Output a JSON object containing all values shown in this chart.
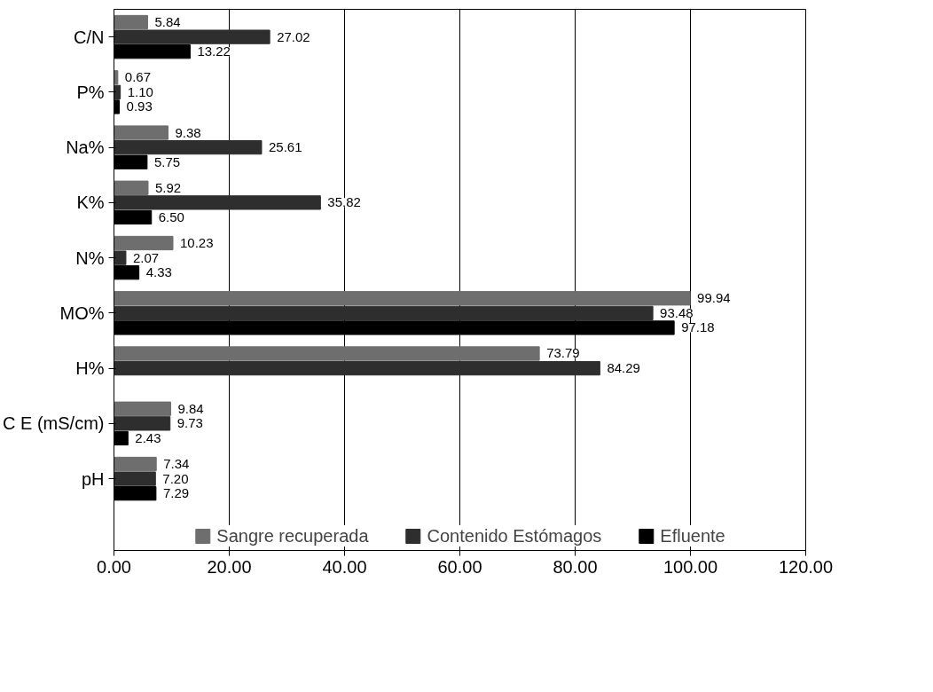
{
  "chart_data": {
    "type": "bar",
    "orientation": "horizontal",
    "categories": [
      "C/N",
      "P%",
      "Na%",
      "K%",
      "N%",
      "MO%",
      "H%",
      "C E (mS/cm)",
      "pH"
    ],
    "series": [
      {
        "name": "Sangre recuperada",
        "color": "#6e6e6e",
        "values": [
          5.84,
          0.67,
          9.38,
          5.92,
          10.23,
          99.94,
          73.79,
          9.84,
          7.34
        ],
        "value_labels": [
          "5.84",
          "0.67",
          "9.38",
          "5.92",
          "10.23",
          "99.94",
          "73.79",
          "9.84",
          "7.34"
        ]
      },
      {
        "name": "Contenido Estómagos",
        "color": "#2e2e2e",
        "values": [
          27.02,
          1.1,
          25.61,
          35.82,
          2.07,
          93.48,
          84.29,
          9.73,
          7.2
        ],
        "value_labels": [
          "27.02",
          "1.10",
          "25.61",
          "35.82",
          "2.07",
          "93.48",
          "84.29",
          "9.73",
          "7.20"
        ]
      },
      {
        "name": "Efluente",
        "color": "#000000",
        "values": [
          13.22,
          0.93,
          5.75,
          6.5,
          4.33,
          97.18,
          null,
          2.43,
          7.29
        ],
        "value_labels": [
          "13.22",
          "0.93",
          "5.75",
          "6.50",
          "4.33",
          "97.18",
          null,
          "2.43",
          "7.29"
        ]
      }
    ],
    "xlim": [
      0,
      120
    ],
    "xticks": [
      {
        "value": 0,
        "label": "0.00"
      },
      {
        "value": 20,
        "label": "20.00"
      },
      {
        "value": 40,
        "label": "40.00"
      },
      {
        "value": 60,
        "label": "60.00"
      },
      {
        "value": 80,
        "label": "80.00"
      },
      {
        "value": 100,
        "label": "100.00"
      },
      {
        "value": 120,
        "label": "120.00"
      }
    ],
    "grid": "x",
    "legend": "bottom"
  }
}
